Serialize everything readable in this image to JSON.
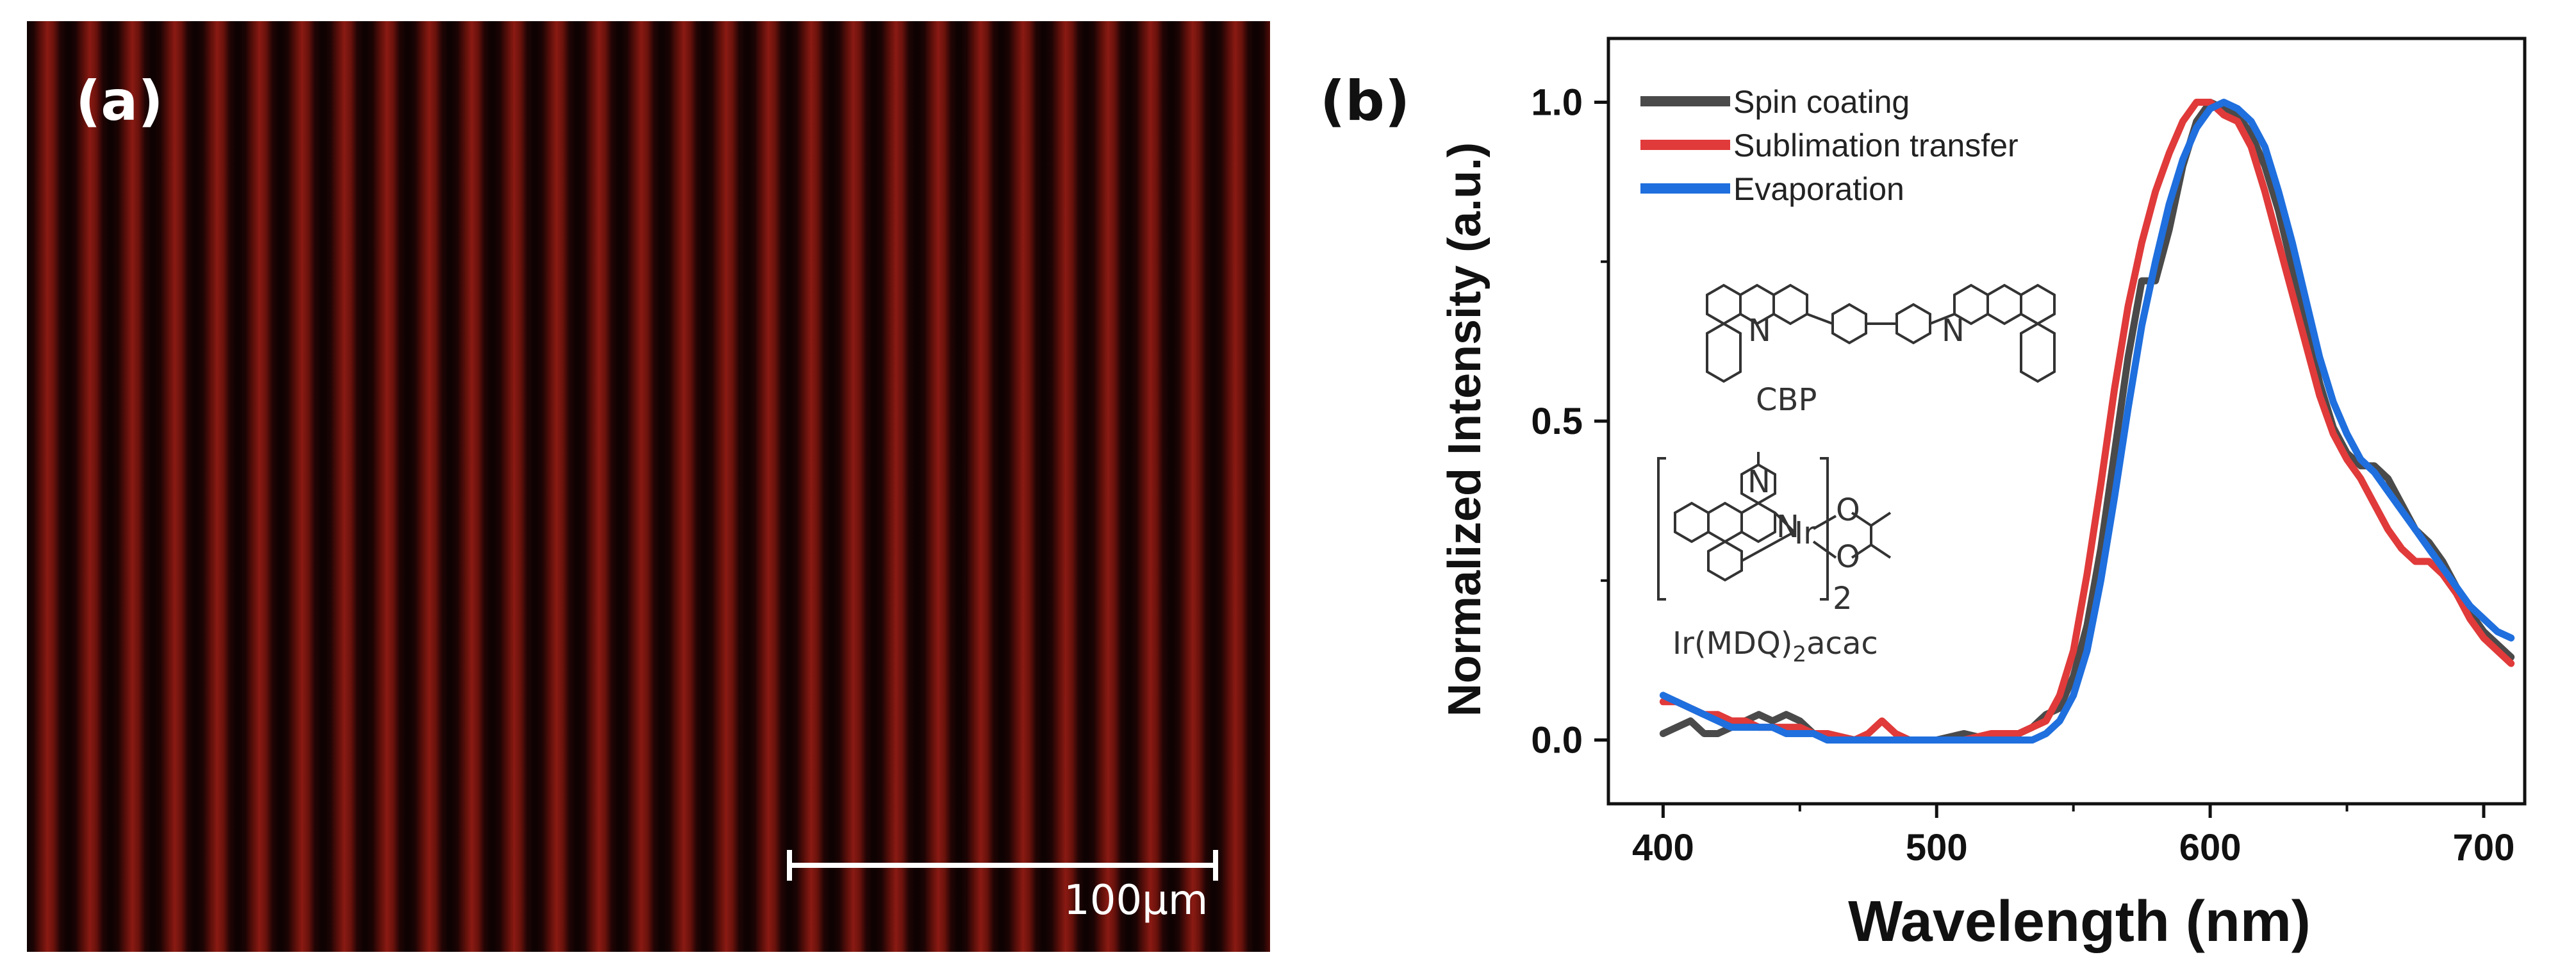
{
  "panel_a": {
    "label": "(a)",
    "scale_bar_label": "100μm",
    "stripe_color": "#8a1a13",
    "background_color": "#120303"
  },
  "panel_b": {
    "label": "(b)"
  },
  "chemistry": {
    "cbp_label": "CBP",
    "ir_label_prefix": "Ir(MDQ)",
    "ir_label_sub": "2",
    "ir_label_suffix": "acac",
    "bracket_subscript": "2",
    "atom_n": "N",
    "atom_ir": "Ir",
    "atom_o": "O"
  },
  "chart_data": {
    "type": "line",
    "title": "",
    "xlabel": "Wavelength (nm)",
    "ylabel": "Normalized Intensity (a.u.)",
    "xlim": [
      380,
      715
    ],
    "ylim": [
      -0.1,
      1.1
    ],
    "xticks": [
      400,
      500,
      600,
      700
    ],
    "yticks": [
      0.0,
      0.5,
      1.0
    ],
    "xtick_labels": [
      "400",
      "500",
      "600",
      "700"
    ],
    "ytick_labels": [
      "0.0",
      "0.5",
      "1.0"
    ],
    "legend_position": "top-left",
    "series": [
      {
        "name": "Spin coating",
        "color": "#4a4a4a",
        "x": [
          400,
          405,
          410,
          415,
          420,
          425,
          430,
          435,
          440,
          445,
          450,
          455,
          460,
          470,
          480,
          490,
          500,
          510,
          520,
          530,
          535,
          540,
          545,
          550,
          555,
          560,
          565,
          570,
          575,
          580,
          585,
          590,
          595,
          600,
          605,
          610,
          615,
          620,
          625,
          630,
          635,
          640,
          645,
          650,
          655,
          660,
          665,
          670,
          675,
          680,
          685,
          690,
          695,
          700,
          705,
          710
        ],
        "y": [
          0.01,
          0.02,
          0.03,
          0.01,
          0.01,
          0.02,
          0.03,
          0.04,
          0.03,
          0.04,
          0.03,
          0.01,
          0.01,
          0.0,
          0.0,
          0.0,
          0.0,
          0.01,
          0.0,
          0.01,
          0.02,
          0.04,
          0.05,
          0.1,
          0.18,
          0.3,
          0.45,
          0.6,
          0.72,
          0.72,
          0.8,
          0.9,
          0.97,
          1.0,
          0.99,
          0.98,
          0.95,
          0.9,
          0.83,
          0.74,
          0.65,
          0.56,
          0.49,
          0.45,
          0.43,
          0.43,
          0.41,
          0.37,
          0.33,
          0.31,
          0.28,
          0.24,
          0.2,
          0.17,
          0.15,
          0.13
        ]
      },
      {
        "name": "Sublimation transfer",
        "color": "#e03a3a",
        "x": [
          400,
          405,
          410,
          415,
          420,
          425,
          430,
          435,
          440,
          445,
          450,
          455,
          460,
          470,
          475,
          480,
          485,
          490,
          500,
          510,
          520,
          530,
          535,
          540,
          545,
          550,
          555,
          560,
          565,
          570,
          575,
          580,
          585,
          590,
          595,
          600,
          605,
          610,
          615,
          620,
          625,
          630,
          635,
          640,
          645,
          650,
          655,
          660,
          665,
          670,
          675,
          680,
          685,
          690,
          695,
          700,
          705,
          710
        ],
        "y": [
          0.06,
          0.06,
          0.05,
          0.04,
          0.04,
          0.03,
          0.03,
          0.02,
          0.02,
          0.02,
          0.02,
          0.01,
          0.01,
          0.0,
          0.01,
          0.03,
          0.01,
          0.0,
          0.0,
          0.0,
          0.01,
          0.01,
          0.02,
          0.03,
          0.07,
          0.14,
          0.26,
          0.4,
          0.55,
          0.68,
          0.78,
          0.86,
          0.92,
          0.97,
          1.0,
          1.0,
          0.98,
          0.97,
          0.93,
          0.86,
          0.78,
          0.7,
          0.62,
          0.54,
          0.48,
          0.44,
          0.41,
          0.37,
          0.33,
          0.3,
          0.28,
          0.28,
          0.26,
          0.23,
          0.19,
          0.16,
          0.14,
          0.12
        ]
      },
      {
        "name": "Evaporation",
        "color": "#1f6fde",
        "x": [
          400,
          405,
          410,
          415,
          420,
          425,
          430,
          435,
          440,
          445,
          450,
          455,
          460,
          470,
          480,
          490,
          500,
          510,
          520,
          530,
          535,
          540,
          545,
          550,
          555,
          560,
          565,
          570,
          575,
          580,
          585,
          590,
          595,
          600,
          605,
          610,
          615,
          620,
          625,
          630,
          635,
          640,
          645,
          650,
          655,
          660,
          665,
          670,
          675,
          680,
          685,
          690,
          695,
          700,
          705,
          710
        ],
        "y": [
          0.07,
          0.06,
          0.05,
          0.04,
          0.03,
          0.02,
          0.02,
          0.02,
          0.02,
          0.01,
          0.01,
          0.01,
          0.0,
          0.0,
          0.0,
          0.0,
          0.0,
          0.0,
          0.0,
          0.0,
          0.0,
          0.01,
          0.03,
          0.07,
          0.14,
          0.25,
          0.38,
          0.52,
          0.65,
          0.75,
          0.84,
          0.91,
          0.96,
          0.99,
          1.0,
          0.99,
          0.97,
          0.93,
          0.86,
          0.78,
          0.69,
          0.6,
          0.53,
          0.48,
          0.44,
          0.42,
          0.39,
          0.36,
          0.33,
          0.3,
          0.27,
          0.24,
          0.21,
          0.19,
          0.17,
          0.16
        ]
      }
    ]
  }
}
